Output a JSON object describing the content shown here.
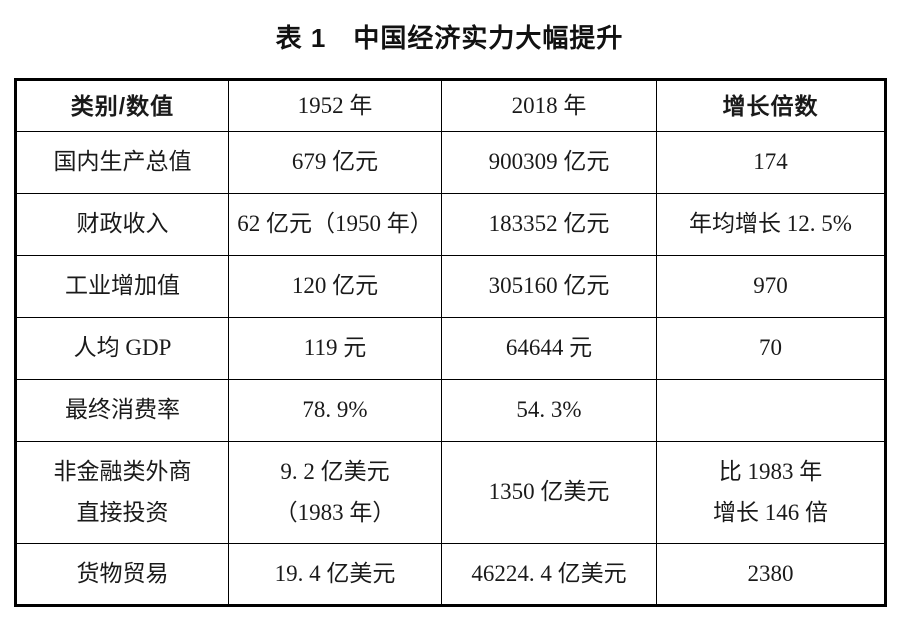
{
  "page": {
    "title": "表 1　中国经济实力大幅提升"
  },
  "table": {
    "headers": [
      "类别/数值",
      "1952 年",
      "2018 年",
      "增长倍数"
    ],
    "rows": [
      {
        "category": "国内生产总值",
        "y1952": "679 亿元",
        "y2018": "900309 亿元",
        "growth": "174"
      },
      {
        "category": "财政收入",
        "y1952": "62 亿元（1950 年）",
        "y2018": "183352 亿元",
        "growth": "年均增长 12. 5%"
      },
      {
        "category": "工业增加值",
        "y1952": "120 亿元",
        "y2018": "305160 亿元",
        "growth": "970"
      },
      {
        "category": "人均 GDP",
        "y1952": "119 元",
        "y2018": "64644 元",
        "growth": "70"
      },
      {
        "category": "最终消费率",
        "y1952": "78. 9%",
        "y2018": "54. 3%",
        "growth": ""
      },
      {
        "category": "非金融类外商\n直接投资",
        "y1952": "9. 2 亿美元\n（1983 年）",
        "y2018": "1350 亿美元",
        "growth": "比 1983 年\n增长 146 倍"
      },
      {
        "category": "货物贸易",
        "y1952": "19. 4 亿美元",
        "y2018": "46224. 4 亿美元",
        "growth": "2380"
      }
    ]
  }
}
